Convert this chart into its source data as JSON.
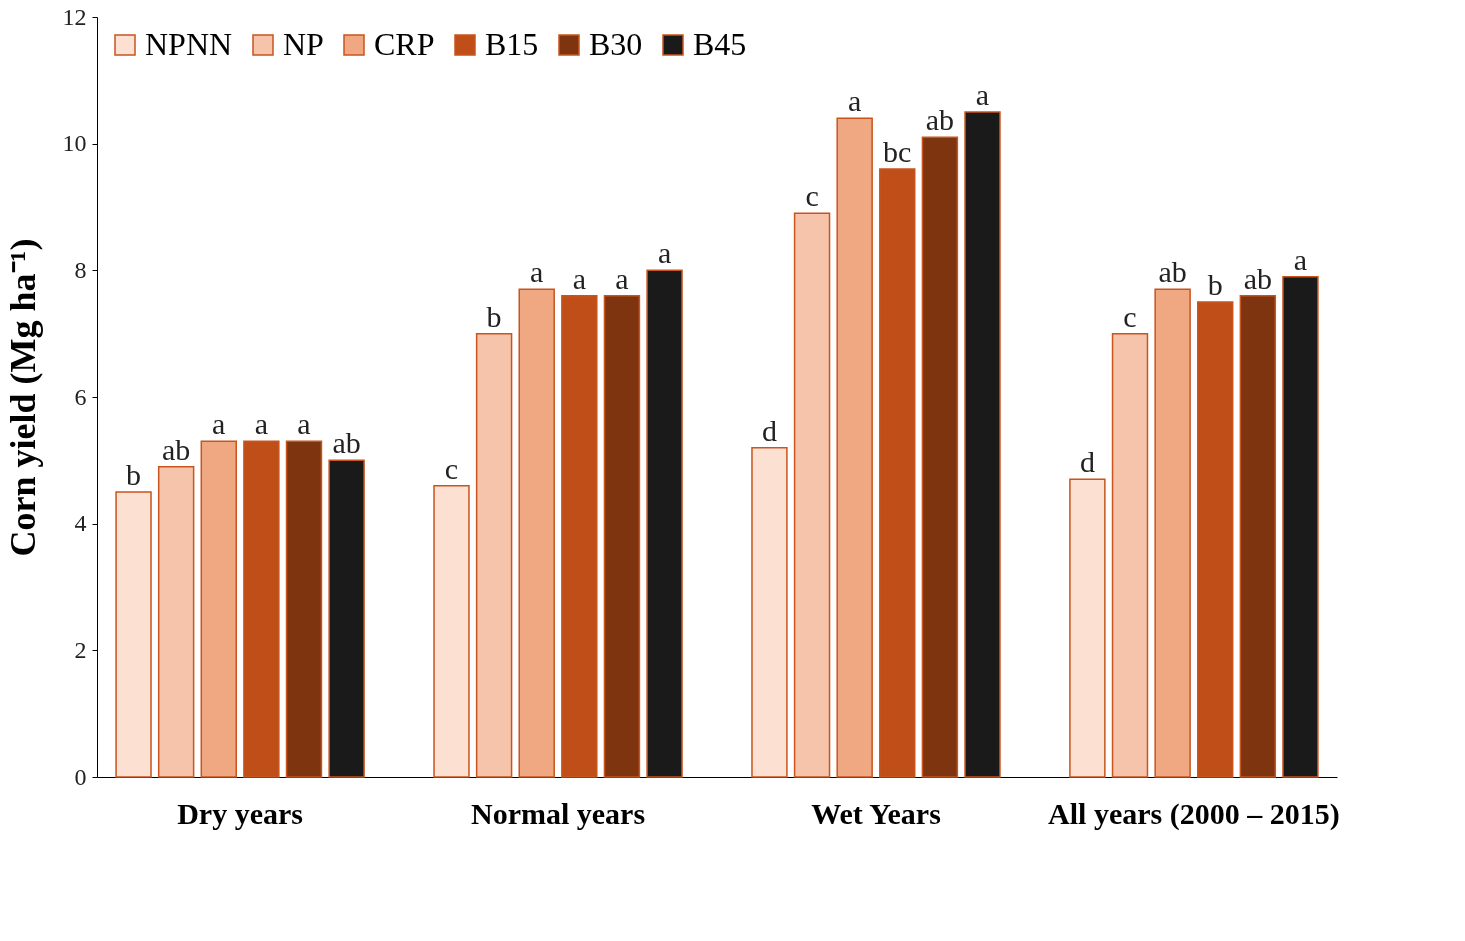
{
  "chart_data": {
    "type": "bar",
    "ylabel": "Corn yield (Mg ha⁻¹)",
    "categories": [
      "Dry years",
      "Normal years",
      "Wet Years",
      "All years (2000 – 2015)"
    ],
    "series": [
      {
        "name": "NPNN",
        "color": "#fce0d2",
        "values": [
          4.5,
          4.6,
          5.2,
          4.7
        ],
        "value_labels": [
          "b",
          "c",
          "d",
          "d"
        ]
      },
      {
        "name": "NP",
        "color": "#f6c4aa",
        "values": [
          4.9,
          7.0,
          8.9,
          7.0
        ],
        "value_labels": [
          "ab",
          "b",
          "c",
          "c"
        ]
      },
      {
        "name": "CRP",
        "color": "#f0a882",
        "values": [
          5.3,
          7.7,
          10.4,
          7.7
        ],
        "value_labels": [
          "a",
          "a",
          "a",
          "ab"
        ]
      },
      {
        "name": "B15",
        "color": "#c04e18",
        "values": [
          5.3,
          7.6,
          9.6,
          7.5
        ],
        "value_labels": [
          "a",
          "a",
          "bc",
          "b"
        ]
      },
      {
        "name": "B30",
        "color": "#7f3410",
        "values": [
          5.3,
          7.6,
          10.1,
          7.6
        ],
        "value_labels": [
          "a",
          "a",
          "ab",
          "ab"
        ]
      },
      {
        "name": "B45",
        "color": "#1a1a1a",
        "values": [
          5.0,
          8.0,
          10.5,
          7.9
        ],
        "value_labels": [
          "ab",
          "a",
          "a",
          "a"
        ]
      }
    ],
    "ylim": [
      0,
      12
    ],
    "yticks": [
      0,
      2,
      4,
      6,
      8,
      10,
      12
    ],
    "grid": false,
    "legend": "top left"
  }
}
